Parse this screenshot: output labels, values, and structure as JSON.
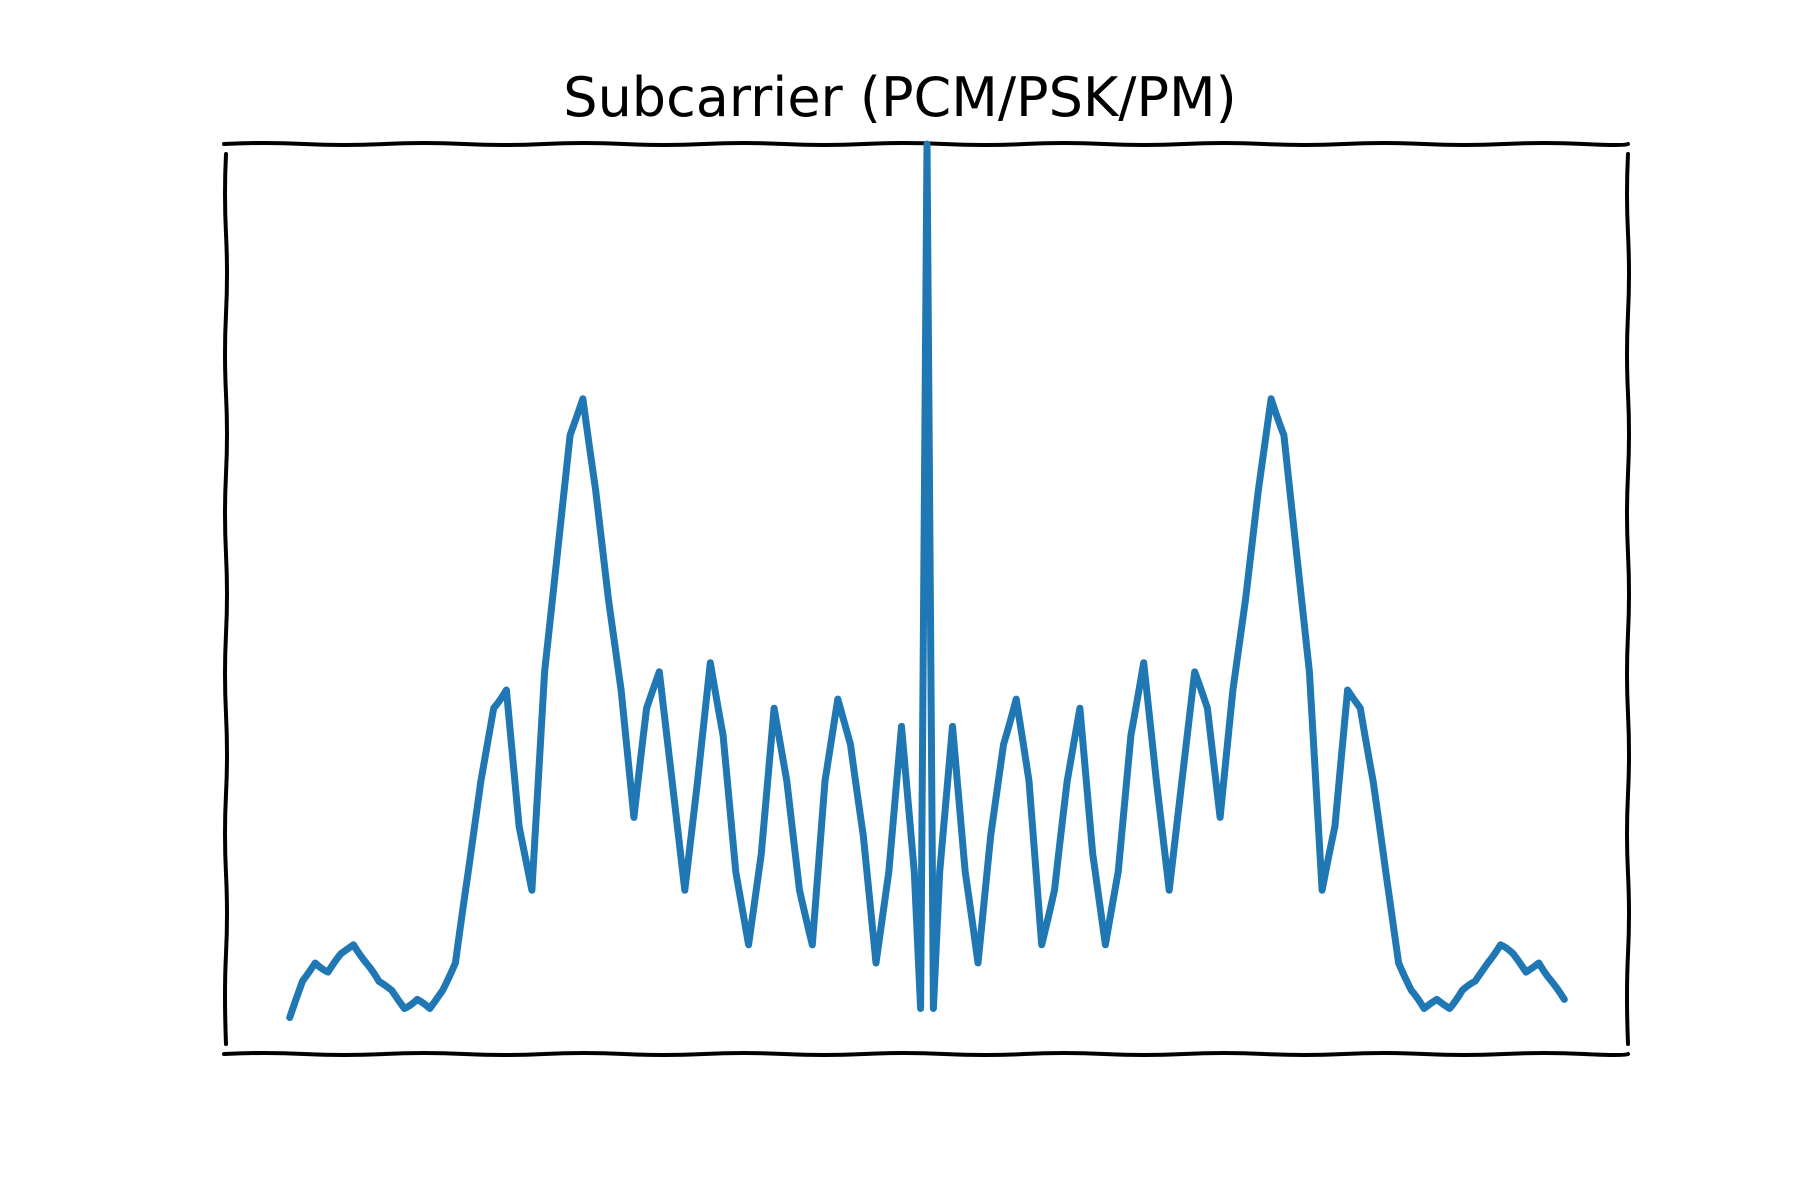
{
  "chart_data": {
    "type": "line",
    "title": "Subcarrier (PCM/PSK/PM)",
    "xlabel": "",
    "ylabel": "",
    "xlim": [
      -1.1,
      1.1
    ],
    "ylim": [
      0,
      1.0
    ],
    "axes_visible": false,
    "ticks": false,
    "grid": false,
    "legend": "none",
    "style": "xkcd",
    "series": [
      {
        "color": "#1f77b4",
        "x": [
          -1.0,
          -0.98,
          -0.96,
          -0.94,
          -0.92,
          -0.9,
          -0.88,
          -0.86,
          -0.84,
          -0.82,
          -0.8,
          -0.78,
          -0.76,
          -0.74,
          -0.72,
          -0.7,
          -0.68,
          -0.66,
          -0.64,
          -0.62,
          -0.6,
          -0.58,
          -0.56,
          -0.54,
          -0.52,
          -0.5,
          -0.48,
          -0.46,
          -0.44,
          -0.42,
          -0.4,
          -0.38,
          -0.36,
          -0.34,
          -0.32,
          -0.3,
          -0.28,
          -0.26,
          -0.24,
          -0.22,
          -0.2,
          -0.18,
          -0.16,
          -0.14,
          -0.12,
          -0.1,
          -0.08,
          -0.06,
          -0.04,
          -0.02,
          -0.01,
          0.0,
          0.01,
          0.02,
          0.04,
          0.06,
          0.08,
          0.1,
          0.12,
          0.14,
          0.16,
          0.18,
          0.2,
          0.22,
          0.24,
          0.26,
          0.28,
          0.3,
          0.32,
          0.34,
          0.36,
          0.38,
          0.4,
          0.42,
          0.44,
          0.46,
          0.48,
          0.5,
          0.52,
          0.54,
          0.56,
          0.58,
          0.6,
          0.62,
          0.64,
          0.66,
          0.68,
          0.7,
          0.72,
          0.74,
          0.76,
          0.78,
          0.8,
          0.82,
          0.84,
          0.86,
          0.88,
          0.9,
          0.92,
          0.94,
          0.96,
          0.98,
          1.0
        ],
        "y": [
          0.04,
          0.08,
          0.1,
          0.09,
          0.11,
          0.12,
          0.1,
          0.08,
          0.07,
          0.05,
          0.06,
          0.05,
          0.07,
          0.1,
          0.2,
          0.3,
          0.38,
          0.4,
          0.25,
          0.18,
          0.42,
          0.55,
          0.68,
          0.72,
          0.62,
          0.5,
          0.4,
          0.26,
          0.38,
          0.42,
          0.3,
          0.18,
          0.3,
          0.43,
          0.35,
          0.2,
          0.12,
          0.22,
          0.38,
          0.3,
          0.18,
          0.12,
          0.3,
          0.39,
          0.34,
          0.24,
          0.1,
          0.2,
          0.36,
          0.2,
          0.05,
          1.0,
          0.05,
          0.2,
          0.36,
          0.2,
          0.1,
          0.24,
          0.34,
          0.39,
          0.3,
          0.12,
          0.18,
          0.3,
          0.38,
          0.22,
          0.12,
          0.2,
          0.35,
          0.43,
          0.3,
          0.18,
          0.3,
          0.42,
          0.38,
          0.26,
          0.4,
          0.5,
          0.62,
          0.72,
          0.68,
          0.55,
          0.42,
          0.18,
          0.25,
          0.4,
          0.38,
          0.3,
          0.2,
          0.1,
          0.07,
          0.05,
          0.06,
          0.05,
          0.07,
          0.08,
          0.1,
          0.12,
          0.11,
          0.09,
          0.1,
          0.08,
          0.06
        ]
      }
    ]
  }
}
